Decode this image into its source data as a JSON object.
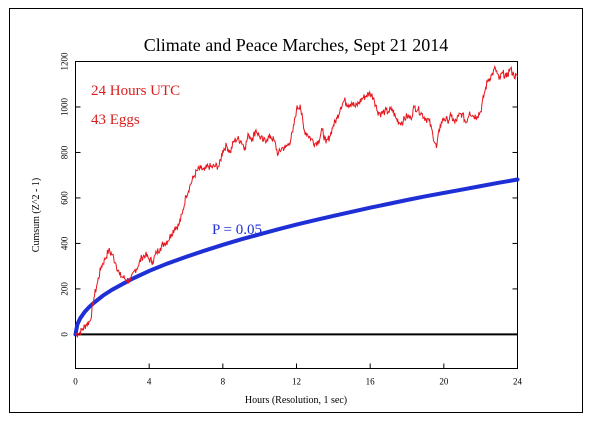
{
  "chart_data": {
    "type": "line",
    "title": "Climate and Peace Marches, Sept 21 2014",
    "xlabel": "Hours (Resolution, 1 sec)",
    "ylabel": "Cumsum (Z^2 - 1)",
    "xlim": [
      0,
      24
    ],
    "ylim": [
      -150,
      1200
    ],
    "xticks": [
      0,
      4,
      8,
      12,
      16,
      20,
      24
    ],
    "yticks": [
      0,
      200,
      400,
      600,
      800,
      1000,
      1200
    ],
    "annotations": {
      "line1": "24 Hours UTC",
      "line2": "43 Eggs",
      "probability_label": "P = 0.05"
    },
    "colors": {
      "cumsum": "#e8141c",
      "probability": "#1f2fd6",
      "baseline": "#000000",
      "annotation_text": "#d81e1e",
      "probability_text": "#1f2fd6"
    },
    "series": [
      {
        "x": [
          0,
          0.2,
          0.4,
          0.6,
          0.8,
          1.0,
          1.2,
          1.4,
          1.6,
          1.8,
          2.0,
          2.2,
          2.4,
          2.6,
          2.8,
          3.0,
          3.2,
          3.4,
          3.6,
          3.8,
          4.0,
          4.2,
          4.4,
          4.6,
          4.8,
          5.0,
          5.2,
          5.4,
          5.6,
          5.8,
          6.0,
          6.2,
          6.4,
          6.6,
          6.8,
          7.0,
          7.2,
          7.4,
          7.6,
          7.8,
          8.0,
          8.2,
          8.4,
          8.6,
          8.8,
          9.0,
          9.2,
          9.4,
          9.6,
          9.8,
          10.0,
          10.2,
          10.4,
          10.6,
          10.8,
          11.0,
          11.2,
          11.4,
          11.6,
          11.8,
          12.0,
          12.2,
          12.4,
          12.6,
          12.8,
          13.0,
          13.2,
          13.4,
          13.6,
          13.8,
          14.0,
          14.2,
          14.4,
          14.6,
          14.8,
          15.0,
          15.2,
          15.4,
          15.6,
          15.8,
          16.0,
          16.2,
          16.4,
          16.6,
          16.8,
          17.0,
          17.2,
          17.4,
          17.6,
          17.8,
          18.0,
          18.2,
          18.4,
          18.6,
          18.8,
          19.0,
          19.2,
          19.4,
          19.6,
          19.8,
          20.0,
          20.2,
          20.4,
          20.6,
          20.8,
          21.0,
          21.2,
          21.4,
          21.6,
          21.8,
          22.0,
          22.2,
          22.4,
          22.6,
          22.8,
          23.0,
          23.2,
          23.4,
          23.6,
          23.8,
          24.0
        ],
        "values": [
          0,
          5,
          25,
          45,
          60,
          160,
          230,
          300,
          330,
          370,
          350,
          310,
          260,
          250,
          240,
          235,
          280,
          300,
          340,
          350,
          330,
          320,
          360,
          380,
          400,
          410,
          440,
          470,
          480,
          530,
          610,
          650,
          690,
          720,
          730,
          720,
          740,
          735,
          740,
          740,
          810,
          830,
          800,
          850,
          860,
          850,
          820,
          880,
          860,
          900,
          870,
          850,
          860,
          870,
          850,
          790,
          820,
          820,
          840,
          890,
          990,
          1010,
          900,
          880,
          860,
          840,
          850,
          900,
          840,
          870,
          920,
          950,
          1000,
          1030,
          1010,
          1020,
          1000,
          1020,
          1040,
          1050,
          1060,
          1040,
          980,
          970,
          980,
          980,
          990,
          950,
          930,
          940,
          960,
          950,
          1000,
          990,
          970,
          950,
          940,
          880,
          820,
          920,
          950,
          940,
          960,
          930,
          960,
          970,
          930,
          980,
          960,
          960,
          980,
          1060,
          1120,
          1140,
          1170,
          1120,
          1150,
          1130,
          1170,
          1140,
          1130
        ]
      },
      {
        "x": [
          0,
          0.1,
          0.25,
          0.5,
          0.75,
          1,
          1.5,
          2,
          3,
          4,
          5,
          6,
          7,
          8,
          9,
          10,
          11,
          12,
          13,
          14,
          15,
          16,
          17,
          18,
          19,
          20,
          21,
          22,
          23,
          24
        ],
        "values": [
          0,
          44,
          70,
          99,
          121,
          139,
          171,
          197,
          241,
          279,
          312,
          341,
          368,
          394,
          418,
          440,
          462,
          483,
          502,
          521,
          539,
          557,
          574,
          591,
          607,
          622,
          637,
          652,
          667,
          681
        ]
      }
    ]
  }
}
